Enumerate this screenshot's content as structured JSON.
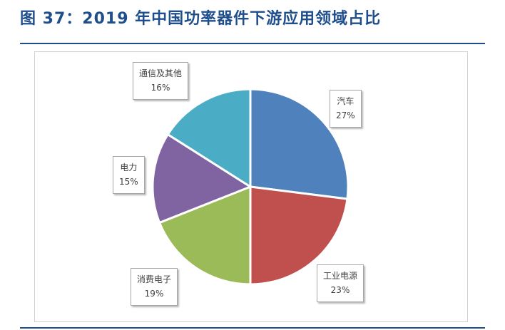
{
  "figure": {
    "title": "图 37：2019 年中国功率器件下游应用领域占比"
  },
  "chart_data": {
    "type": "pie",
    "title": "图 37：2019 年中国功率器件下游应用领域占比",
    "slices": [
      {
        "label": "汽车",
        "value": 27,
        "display": "27%",
        "color": "#4f81bd"
      },
      {
        "label": "工业电源",
        "value": 23,
        "display": "23%",
        "color": "#c0504d"
      },
      {
        "label": "消费电子",
        "value": 19,
        "display": "19%",
        "color": "#9bbb59"
      },
      {
        "label": "电力",
        "value": 15,
        "display": "15%",
        "color": "#8064a2"
      },
      {
        "label": "通信及其他",
        "value": 16,
        "display": "16%",
        "color": "#4bacc6"
      }
    ],
    "start_angle_deg": 0,
    "direction": "clockwise",
    "legend": "none",
    "data_labels": "callout"
  }
}
